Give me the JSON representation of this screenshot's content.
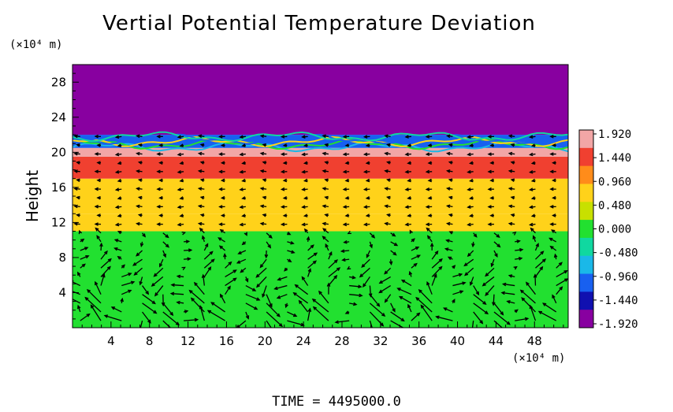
{
  "chart_data": {
    "type": "heatmap",
    "title": "Vertial Potential Temperature Deviation",
    "ylabel": "Height",
    "xunit": "(×10⁴ m)",
    "yunit": "(×10⁴ m)",
    "xlim": [
      0,
      51.5
    ],
    "ylim": [
      0,
      30
    ],
    "x_ticks": [
      4,
      8,
      12,
      16,
      20,
      24,
      28,
      32,
      36,
      40,
      44,
      48
    ],
    "y_ticks": [
      4,
      8,
      12,
      16,
      20,
      24,
      28
    ],
    "colorbar": {
      "ticks": [
        "1.920",
        "1.440",
        "0.960",
        "0.480",
        "0.000",
        "-0.480",
        "-0.960",
        "-1.440",
        "-1.920"
      ],
      "range": [
        -1.92,
        1.92
      ],
      "colors": [
        "#f2a6a6",
        "#f04030",
        "#ff8c1a",
        "#ffd21a",
        "#c8e000",
        "#22e030",
        "#10d8a0",
        "#1ab8e8",
        "#1860f0",
        "#1010b0",
        "#8800a0"
      ]
    },
    "layers": [
      {
        "ymin": 0,
        "ymax": 11,
        "value": 0.0
      },
      {
        "ymin": 11,
        "ymax": 13,
        "value": 0.6
      },
      {
        "ymin": 13,
        "ymax": 17,
        "value": 0.96
      },
      {
        "ymin": 17,
        "ymax": 19.5,
        "value": 1.44
      },
      {
        "ymin": 19.5,
        "ymax": 20.5,
        "value": 1.92
      },
      {
        "ymin": 20.5,
        "ymax": 22,
        "value": -0.96
      },
      {
        "ymin": 22,
        "ymax": 30,
        "value": -1.92
      }
    ],
    "vector_field": "wind arrows"
  },
  "footer": {
    "time_label": "TIME  =  4495000.0"
  }
}
